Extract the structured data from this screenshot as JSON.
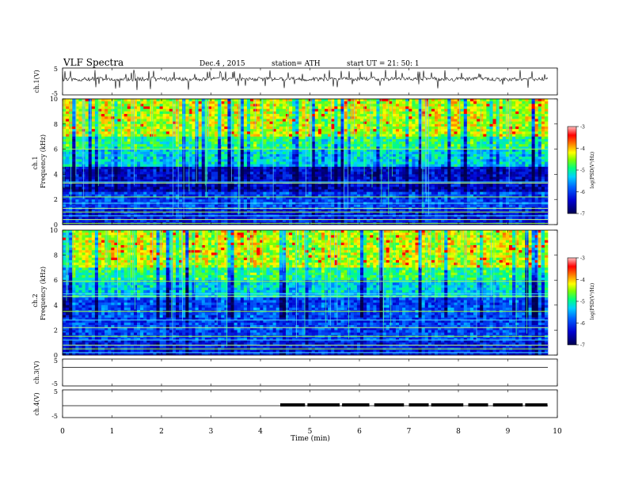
{
  "header": {
    "title": "VLF  Spectra",
    "date": "Dec.4  , 2015",
    "station": "station= ATH",
    "start": "start  UT  =    21: 50: 1"
  },
  "colorbar": {
    "ticks": [
      "-3",
      "-4",
      "-5",
      "-6",
      "-7"
    ],
    "label": "log(PSD(V²/Hz)",
    "colors": [
      "#000060",
      "#0000c8",
      "#0050ff",
      "#00c8ff",
      "#00ff90",
      "#90ff00",
      "#ffff00",
      "#ff8000",
      "#ff0000",
      "#ffb0b0"
    ]
  },
  "chart_data": [
    {
      "type": "line",
      "panel": "ch1",
      "ylabel": "ch.1(V)",
      "ylim": [
        -5,
        5
      ],
      "yticks": [
        "5",
        "-5"
      ],
      "description_values": "noisy time series near 0 V with spikes"
    },
    {
      "type": "heatmap",
      "panel": "ch1-spectrum",
      "ylabel_top": "ch.1",
      "ylabel": "Frequency  (kHz)",
      "ylim": [
        0,
        10
      ],
      "yticks": [
        "10",
        "8",
        "6",
        "4",
        "2",
        "0"
      ],
      "clim": [
        -7,
        -3
      ],
      "colorbar_label": "log(PSD(V²/Hz)"
    },
    {
      "type": "heatmap",
      "panel": "ch2-spectrum",
      "ylabel_top": "ch.2",
      "ylabel": "Frequency  (kHz)",
      "ylim": [
        0,
        10
      ],
      "yticks": [
        "10",
        "8",
        "6",
        "4",
        "2",
        "0"
      ],
      "clim": [
        -7,
        -3
      ],
      "colorbar_label": "log(PSD(V²/Hz)"
    },
    {
      "type": "line",
      "panel": "ch3",
      "ylabel": "ch.3(V)",
      "ylim": [
        -5,
        5
      ],
      "yticks": [
        "5",
        "-5"
      ]
    },
    {
      "type": "line",
      "panel": "ch4",
      "ylabel": "ch.4(V)",
      "ylim": [
        -5,
        5
      ],
      "yticks": [
        "5",
        "-5"
      ],
      "pulse_segments_min": [
        [
          4.4,
          4.9
        ],
        [
          4.95,
          5.6
        ],
        [
          5.65,
          6.2
        ],
        [
          6.3,
          6.9
        ],
        [
          7.0,
          7.4
        ],
        [
          7.45,
          8.1
        ],
        [
          8.2,
          8.6
        ],
        [
          8.7,
          9.3
        ],
        [
          9.35,
          9.8
        ]
      ]
    }
  ],
  "xaxis": {
    "xlabel": "Time  (min)",
    "xlim": [
      0,
      10
    ],
    "ticks": [
      "0",
      "1",
      "2",
      "3",
      "4",
      "5",
      "6",
      "7",
      "8",
      "9",
      "10"
    ]
  }
}
